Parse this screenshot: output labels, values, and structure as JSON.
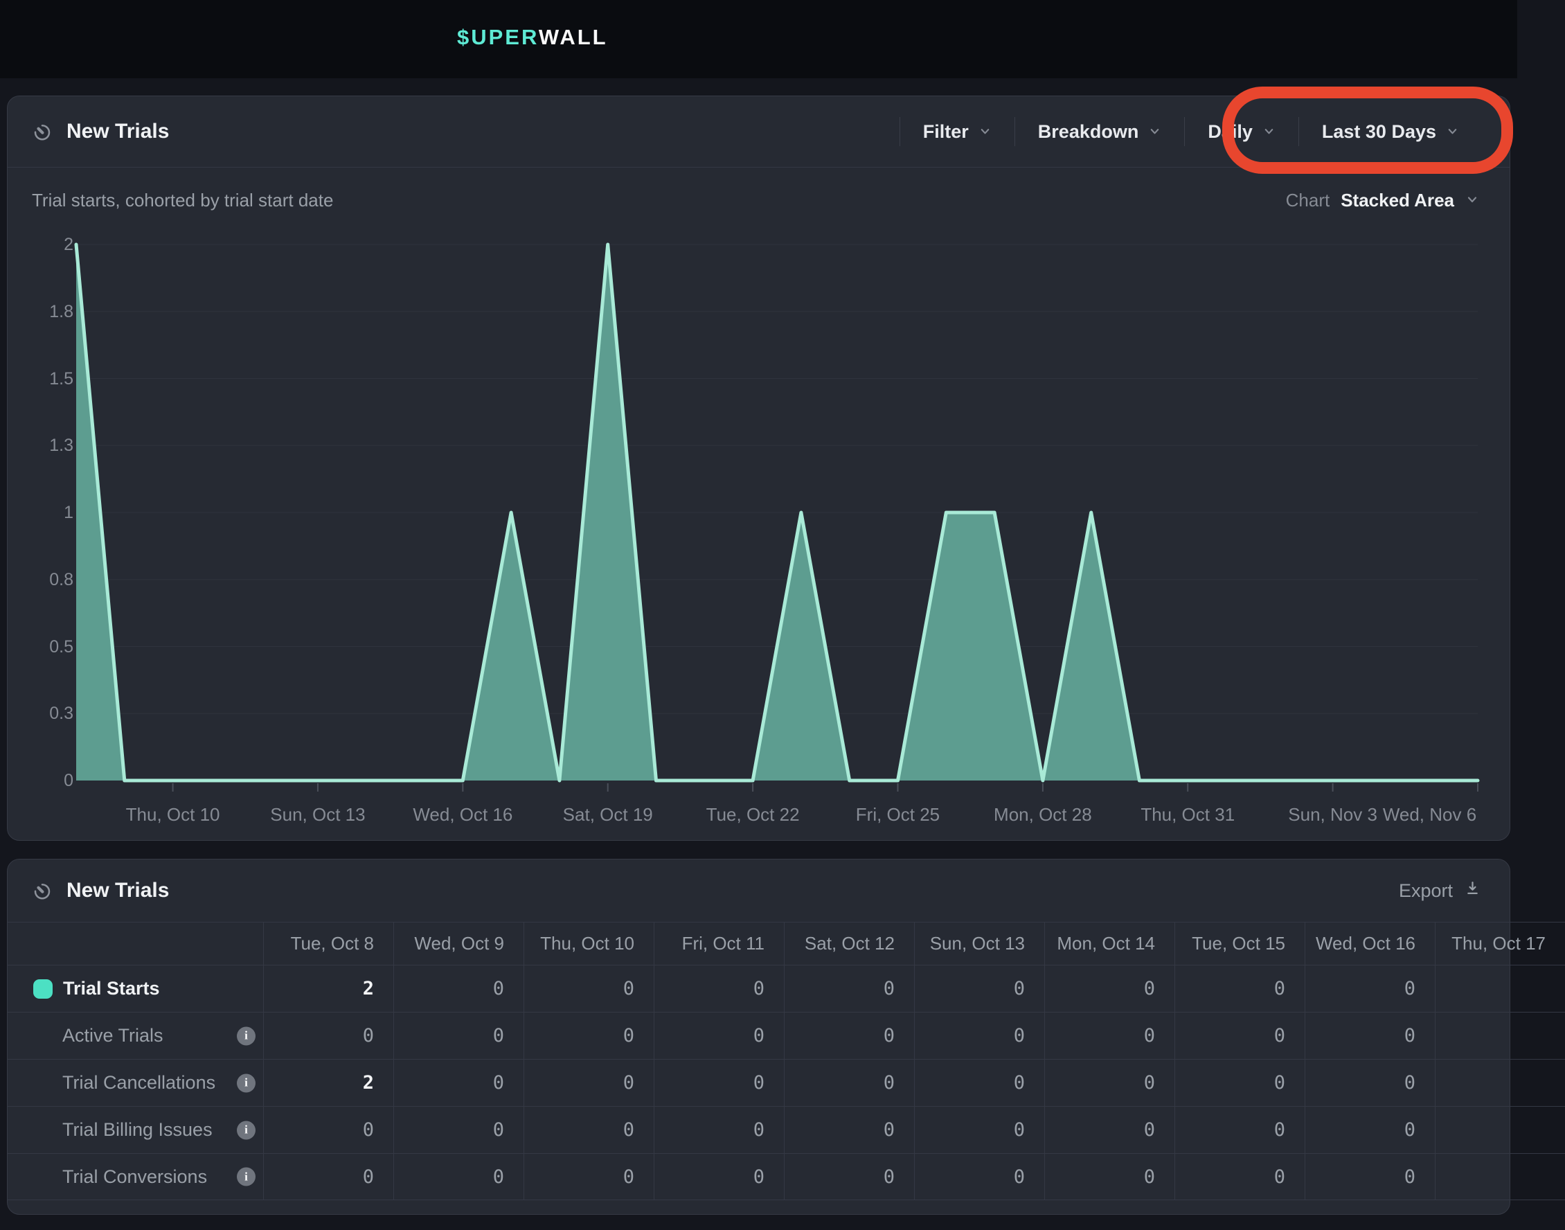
{
  "topbar": {
    "logo_teal": "$UPER",
    "logo_white": "WALL",
    "teal_color": "#5eead4",
    "white_color": "#fafafa"
  },
  "chart_card": {
    "title": "New Trials",
    "subtitle": "Trial starts, cohorted by trial start date",
    "controls": [
      {
        "label": "Filter"
      },
      {
        "label": "Breakdown"
      },
      {
        "label": "Daily"
      },
      {
        "label": "Last 30 Days"
      }
    ],
    "chart_type_label": "Chart",
    "chart_type_value": "Stacked Area"
  },
  "chart_data": {
    "type": "area",
    "title": "New Trials",
    "x": [
      "Tue, Oct 8",
      "Wed, Oct 9",
      "Thu, Oct 10",
      "Fri, Oct 11",
      "Sat, Oct 12",
      "Sun, Oct 13",
      "Mon, Oct 14",
      "Tue, Oct 15",
      "Wed, Oct 16",
      "Thu, Oct 17",
      "Fri, Oct 18",
      "Sat, Oct 19",
      "Sun, Oct 20",
      "Mon, Oct 21",
      "Tue, Oct 22",
      "Wed, Oct 23",
      "Thu, Oct 24",
      "Fri, Oct 25",
      "Sat, Oct 26",
      "Sun, Oct 27",
      "Mon, Oct 28",
      "Tue, Oct 29",
      "Wed, Oct 30",
      "Thu, Oct 31",
      "Fri, Nov 1",
      "Sat, Nov 2",
      "Sun, Nov 3",
      "Mon, Nov 4",
      "Tue, Nov 5",
      "Wed, Nov 6"
    ],
    "series": [
      {
        "name": "Trial Starts",
        "values": [
          2,
          0,
          0,
          0,
          0,
          0,
          0,
          0,
          0,
          1,
          0,
          2,
          0,
          0,
          0,
          1,
          0,
          0,
          1,
          1,
          0,
          1,
          0,
          0,
          0,
          0,
          0,
          0,
          0,
          0
        ]
      }
    ],
    "ylim": [
      0,
      2
    ],
    "ytick_values": [
      0,
      0.25,
      0.5,
      0.75,
      1,
      1.25,
      1.5,
      1.75,
      2
    ],
    "ytick_labels": [
      "0",
      "0.3",
      "0.5",
      "0.8",
      "1",
      "1.3",
      "1.5",
      "1.8",
      "2"
    ],
    "xticks": [
      {
        "index": 2,
        "label": "Thu, Oct 10"
      },
      {
        "index": 5,
        "label": "Sun, Oct 13"
      },
      {
        "index": 8,
        "label": "Wed, Oct 16"
      },
      {
        "index": 11,
        "label": "Sat, Oct 19"
      },
      {
        "index": 14,
        "label": "Tue, Oct 22"
      },
      {
        "index": 17,
        "label": "Fri, Oct 25"
      },
      {
        "index": 20,
        "label": "Mon, Oct 28"
      },
      {
        "index": 23,
        "label": "Thu, Oct 31"
      },
      {
        "index": 26,
        "label": "Sun, Nov 3"
      },
      {
        "index": 29,
        "label": "Wed, Nov 6"
      }
    ],
    "grid": true,
    "legend_position": "none",
    "line_color": "#a9ead7",
    "fill_color": "#5d9d90"
  },
  "table_card": {
    "title": "New Trials",
    "export_label": "Export",
    "columns": [
      "Tue, Oct 8",
      "Wed, Oct 9",
      "Thu, Oct 10",
      "Fri, Oct 11",
      "Sat, Oct 12",
      "Sun, Oct 13",
      "Mon, Oct 14",
      "Tue, Oct 15",
      "Wed, Oct 16",
      "Thu, Oct 17"
    ],
    "rows": [
      {
        "label": "Trial Starts",
        "swatch": true,
        "swatch_color": "#4ce0c3",
        "info": false,
        "emphasis": true,
        "values": [
          "2",
          "0",
          "0",
          "0",
          "0",
          "0",
          "0",
          "0",
          "0",
          ""
        ]
      },
      {
        "label": "Active Trials",
        "swatch": false,
        "info": true,
        "emphasis": false,
        "values": [
          "0",
          "0",
          "0",
          "0",
          "0",
          "0",
          "0",
          "0",
          "0",
          ""
        ]
      },
      {
        "label": "Trial Cancellations",
        "swatch": false,
        "info": true,
        "emphasis": false,
        "values": [
          "2",
          "0",
          "0",
          "0",
          "0",
          "0",
          "0",
          "0",
          "0",
          ""
        ]
      },
      {
        "label": "Trial Billing Issues",
        "swatch": false,
        "info": true,
        "emphasis": false,
        "values": [
          "0",
          "0",
          "0",
          "0",
          "0",
          "0",
          "0",
          "0",
          "0",
          ""
        ]
      },
      {
        "label": "Trial Conversions",
        "swatch": false,
        "info": true,
        "emphasis": false,
        "values": [
          "0",
          "0",
          "0",
          "0",
          "0",
          "0",
          "0",
          "0",
          "0",
          ""
        ]
      }
    ]
  },
  "annotation": {
    "color": "#e8462e",
    "encircles": "Daily, Last 30 Days"
  },
  "icons": {
    "gauge": "gauge-icon",
    "chevron": "chevron-down-icon",
    "info": "info-icon",
    "download": "download-icon"
  }
}
